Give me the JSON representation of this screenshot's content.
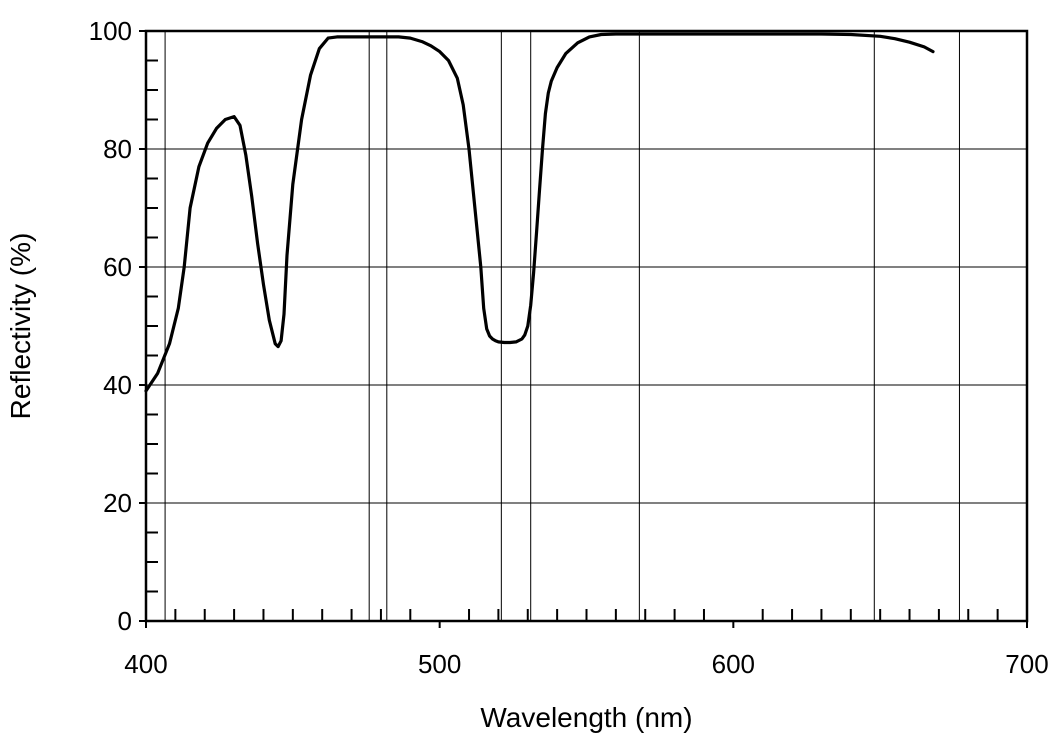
{
  "chart_data": {
    "type": "line",
    "title": "",
    "xlabel": "Wavelength (nm)",
    "ylabel": "Reflectivity (%)",
    "xlim": [
      400,
      700
    ],
    "ylim": [
      0,
      100
    ],
    "x_ticks": [
      "400",
      "500",
      "600",
      "700"
    ],
    "y_ticks": [
      "0",
      "20",
      "40",
      "60",
      "80",
      "100"
    ],
    "grid": true,
    "vertical_grid_x": [
      406.5,
      476,
      482,
      521,
      531,
      568,
      648,
      677
    ],
    "series": [
      {
        "color": "#000000",
        "x": [
          400,
          404,
          408,
          411,
          413,
          415,
          418,
          421,
          424,
          427,
          430,
          432,
          434,
          436,
          438,
          440,
          442,
          444,
          445,
          446,
          447,
          448,
          450,
          453,
          456,
          459,
          462,
          465,
          470,
          480,
          486,
          490,
          494,
          497,
          500,
          503,
          506,
          508,
          510,
          512,
          514,
          515,
          516,
          517,
          518,
          519,
          520,
          522,
          524,
          526,
          528,
          529,
          530,
          531,
          532,
          533,
          534,
          535,
          536,
          537,
          538,
          540,
          543,
          547,
          551,
          555,
          560,
          570,
          590,
          610,
          630,
          640,
          650,
          655,
          660,
          665,
          668
        ],
        "y": [
          39,
          42,
          47,
          53,
          60,
          70,
          77,
          81,
          83.5,
          85,
          85.5,
          84,
          79,
          72,
          64,
          57,
          51,
          47,
          46.5,
          47.5,
          52,
          62,
          74,
          85,
          92.5,
          97,
          98.8,
          99,
          99,
          99,
          99,
          98.8,
          98.2,
          97.5,
          96.5,
          95,
          92,
          87.5,
          80,
          70,
          60,
          53,
          49.5,
          48.3,
          47.8,
          47.5,
          47.3,
          47.2,
          47.2,
          47.3,
          47.8,
          48.5,
          50,
          53.5,
          59,
          66,
          73,
          80,
          86,
          89.5,
          91.5,
          93.8,
          96.2,
          98,
          99,
          99.4,
          99.5,
          99.5,
          99.5,
          99.5,
          99.5,
          99.4,
          99.1,
          98.7,
          98.1,
          97.3,
          96.5
        ]
      }
    ]
  }
}
